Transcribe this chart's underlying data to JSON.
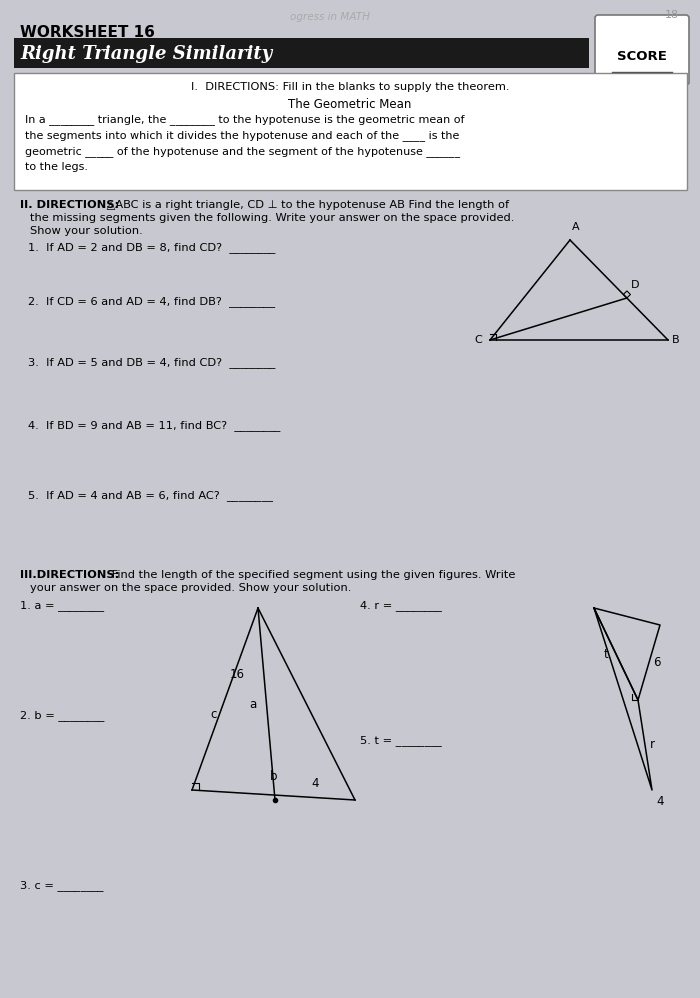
{
  "bg_color": "#c8c8d0",
  "paper_color": "#d0d0d8",
  "title_worksheet": "WORKSHEET 16",
  "title_subject": "Right Triangle Similarity",
  "score_label": "SCORE",
  "header_top": "ogress in MATH",
  "header_page": "18",
  "section1_directions": "I.  DIRECTIONS: Fill in the blanks to supply the theorem.",
  "geom_mean_title": "The Geometric Mean",
  "geom_mean_line1": "In a ________ triangle, the ________ to the hypotenuse is the geometric mean of",
  "geom_mean_line2": "the segments into which it divides the hypotenuse and each of the ____ is the",
  "geom_mean_line3": "geometric _____ of the hypotenuse and the segment of the hypotenuse ______",
  "geom_mean_line4": "to the legs.",
  "sec2_bold": "II. DIRECTIONS:",
  "sec2_rest": " △ABC is a right triangle, CD ⊥ to the hypotenuse AB Find the length of",
  "sec2_line2": "the missing segments given the following. Write your answer on the space provided.",
  "sec2_line3": "Show your solution.",
  "q2_items": [
    "1.  If AD = 2 and DB = 8, find CD?  ________",
    "2.  If CD = 6 and AD = 4, find DB?  ________",
    "3.  If AD = 5 and DB = 4, find CD?  ________",
    "4.  If BD = 9 and AB = 11, find BC?  ________",
    "5.  If AD = 4 and AB = 6, find AC?  ________"
  ],
  "sec3_bold": "III.DIRECTIONS:",
  "sec3_rest": " Find the length of the specified segment using the given figures. Write",
  "sec3_line2": "your answer on the space provided. Show your solution."
}
